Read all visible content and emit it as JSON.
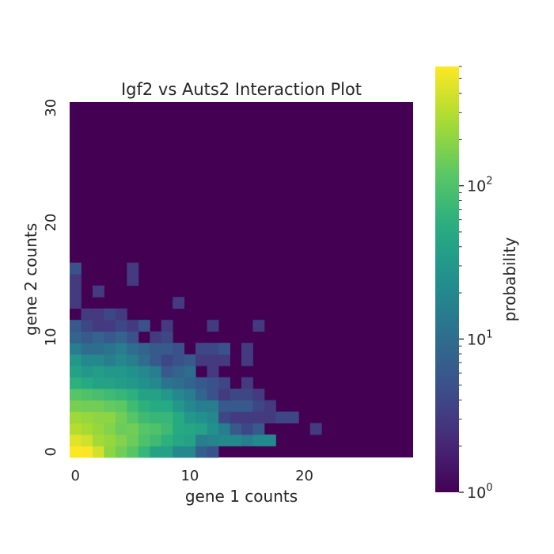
{
  "chart_data": {
    "type": "heatmap",
    "title": "Igf2 vs Auts2 Interaction Plot",
    "xlabel": "gene 1 counts",
    "ylabel": "gene 2 counts",
    "x_ticks": [
      "0",
      "10",
      "20"
    ],
    "y_ticks": [
      "0",
      "10",
      "20",
      "30"
    ],
    "xlim": [
      0,
      30
    ],
    "ylim": [
      0,
      31
    ],
    "colorbar": {
      "label": "probability",
      "scale": "log",
      "colormap": "viridis",
      "range": [
        1,
        600
      ],
      "tick_labels": [
        {
          "base": "10",
          "exp": "0",
          "value": 1
        },
        {
          "base": "10",
          "exp": "1",
          "value": 10
        },
        {
          "base": "10",
          "exp": "2",
          "value": 100
        }
      ]
    },
    "background_value": 1,
    "cells_note_format": "[x, y, value]",
    "cells": [
      [
        0,
        0,
        600
      ],
      [
        1,
        0,
        580
      ],
      [
        2,
        0,
        400
      ],
      [
        3,
        0,
        200
      ],
      [
        4,
        0,
        150
      ],
      [
        5,
        0,
        110
      ],
      [
        6,
        0,
        70
      ],
      [
        7,
        0,
        40
      ],
      [
        8,
        0,
        40
      ],
      [
        9,
        0,
        20
      ],
      [
        10,
        0,
        20
      ],
      [
        11,
        0,
        7
      ],
      [
        12,
        0,
        5
      ],
      [
        0,
        1,
        460
      ],
      [
        1,
        1,
        380
      ],
      [
        2,
        1,
        250
      ],
      [
        3,
        1,
        220
      ],
      [
        4,
        1,
        180
      ],
      [
        5,
        1,
        140
      ],
      [
        6,
        1,
        100
      ],
      [
        7,
        1,
        80
      ],
      [
        8,
        1,
        60
      ],
      [
        9,
        1,
        45
      ],
      [
        10,
        1,
        40
      ],
      [
        11,
        1,
        15
      ],
      [
        12,
        1,
        18
      ],
      [
        13,
        1,
        20
      ],
      [
        14,
        1,
        20
      ],
      [
        15,
        1,
        15
      ],
      [
        16,
        1,
        20
      ],
      [
        17,
        1,
        20
      ],
      [
        0,
        2,
        300
      ],
      [
        1,
        2,
        260
      ],
      [
        2,
        2,
        220
      ],
      [
        3,
        2,
        180
      ],
      [
        4,
        2,
        140
      ],
      [
        5,
        2,
        150
      ],
      [
        6,
        2,
        110
      ],
      [
        7,
        2,
        100
      ],
      [
        8,
        2,
        80
      ],
      [
        9,
        2,
        50
      ],
      [
        10,
        2,
        45
      ],
      [
        11,
        2,
        40
      ],
      [
        12,
        2,
        25
      ],
      [
        13,
        2,
        15
      ],
      [
        14,
        2,
        6
      ],
      [
        15,
        2,
        4
      ],
      [
        16,
        2,
        6
      ],
      [
        21,
        2,
        3
      ],
      [
        0,
        3,
        240
      ],
      [
        1,
        3,
        220
      ],
      [
        2,
        3,
        200
      ],
      [
        3,
        3,
        200
      ],
      [
        4,
        3,
        150
      ],
      [
        5,
        3,
        110
      ],
      [
        6,
        3,
        80
      ],
      [
        7,
        3,
        70
      ],
      [
        8,
        3,
        70
      ],
      [
        9,
        3,
        50
      ],
      [
        10,
        3,
        30
      ],
      [
        11,
        3,
        25
      ],
      [
        12,
        3,
        20
      ],
      [
        13,
        3,
        4
      ],
      [
        14,
        3,
        3
      ],
      [
        15,
        3,
        3
      ],
      [
        16,
        3,
        3
      ],
      [
        17,
        3,
        3
      ],
      [
        18,
        3,
        4
      ],
      [
        19,
        3,
        4
      ],
      [
        0,
        4,
        160
      ],
      [
        1,
        4,
        150
      ],
      [
        2,
        4,
        150
      ],
      [
        3,
        4,
        130
      ],
      [
        4,
        4,
        120
      ],
      [
        5,
        4,
        80
      ],
      [
        6,
        4,
        60
      ],
      [
        7,
        4,
        50
      ],
      [
        8,
        4,
        50
      ],
      [
        9,
        4,
        30
      ],
      [
        10,
        4,
        20
      ],
      [
        11,
        4,
        15
      ],
      [
        12,
        4,
        15
      ],
      [
        13,
        4,
        6
      ],
      [
        14,
        4,
        6
      ],
      [
        15,
        4,
        6
      ],
      [
        16,
        4,
        4
      ],
      [
        17,
        4,
        3
      ],
      [
        0,
        5,
        110
      ],
      [
        1,
        5,
        100
      ],
      [
        2,
        5,
        90
      ],
      [
        3,
        5,
        80
      ],
      [
        4,
        5,
        70
      ],
      [
        5,
        5,
        60
      ],
      [
        6,
        5,
        40
      ],
      [
        7,
        5,
        40
      ],
      [
        8,
        5,
        30
      ],
      [
        9,
        5,
        20
      ],
      [
        10,
        5,
        15
      ],
      [
        11,
        5,
        8
      ],
      [
        12,
        5,
        5
      ],
      [
        13,
        5,
        3
      ],
      [
        14,
        5,
        4
      ],
      [
        15,
        5,
        4
      ],
      [
        16,
        5,
        3
      ],
      [
        0,
        6,
        60
      ],
      [
        1,
        6,
        50
      ],
      [
        2,
        6,
        40
      ],
      [
        3,
        6,
        40
      ],
      [
        4,
        6,
        35
      ],
      [
        5,
        6,
        30
      ],
      [
        6,
        6,
        25
      ],
      [
        7,
        6,
        20
      ],
      [
        8,
        6,
        12
      ],
      [
        9,
        6,
        10
      ],
      [
        10,
        6,
        8
      ],
      [
        11,
        6,
        6
      ],
      [
        12,
        6,
        5
      ],
      [
        13,
        6,
        4
      ],
      [
        15,
        6,
        3
      ],
      [
        0,
        7,
        40
      ],
      [
        1,
        7,
        30
      ],
      [
        2,
        7,
        35
      ],
      [
        3,
        7,
        30
      ],
      [
        4,
        7,
        30
      ],
      [
        5,
        7,
        25
      ],
      [
        6,
        7,
        20
      ],
      [
        7,
        7,
        15
      ],
      [
        8,
        7,
        6
      ],
      [
        9,
        7,
        8
      ],
      [
        10,
        7,
        10
      ],
      [
        12,
        7,
        3
      ],
      [
        0,
        8,
        30
      ],
      [
        1,
        8,
        20
      ],
      [
        2,
        8,
        20
      ],
      [
        3,
        8,
        15
      ],
      [
        4,
        8,
        20
      ],
      [
        5,
        8,
        15
      ],
      [
        6,
        8,
        10
      ],
      [
        7,
        8,
        6
      ],
      [
        8,
        8,
        4
      ],
      [
        9,
        8,
        5
      ],
      [
        10,
        8,
        6
      ],
      [
        11,
        8,
        3
      ],
      [
        12,
        8,
        3
      ],
      [
        13,
        8,
        3
      ],
      [
        15,
        8,
        3
      ],
      [
        0,
        9,
        15
      ],
      [
        1,
        9,
        10
      ],
      [
        2,
        9,
        10
      ],
      [
        3,
        9,
        12
      ],
      [
        4,
        9,
        15
      ],
      [
        5,
        9,
        10
      ],
      [
        6,
        9,
        8
      ],
      [
        7,
        9,
        6
      ],
      [
        8,
        9,
        6
      ],
      [
        9,
        9,
        5
      ],
      [
        11,
        9,
        4
      ],
      [
        12,
        9,
        4
      ],
      [
        13,
        9,
        5
      ],
      [
        15,
        9,
        3
      ],
      [
        0,
        10,
        8
      ],
      [
        1,
        10,
        6
      ],
      [
        2,
        10,
        8
      ],
      [
        3,
        10,
        6
      ],
      [
        4,
        10,
        8
      ],
      [
        5,
        10,
        5
      ],
      [
        7,
        10,
        3
      ],
      [
        8,
        10,
        4
      ],
      [
        0,
        11,
        6
      ],
      [
        1,
        11,
        4
      ],
      [
        2,
        11,
        3
      ],
      [
        3,
        11,
        3
      ],
      [
        4,
        11,
        4
      ],
      [
        5,
        11,
        3
      ],
      [
        6,
        11,
        5
      ],
      [
        8,
        11,
        3
      ],
      [
        12,
        11,
        3
      ],
      [
        16,
        11,
        3
      ],
      [
        1,
        12,
        3
      ],
      [
        2,
        12,
        3
      ],
      [
        3,
        12,
        4
      ],
      [
        4,
        12,
        3
      ],
      [
        0,
        13,
        3
      ],
      [
        9,
        13,
        3
      ],
      [
        0,
        14,
        3
      ],
      [
        2,
        14,
        3
      ],
      [
        0,
        15,
        3
      ],
      [
        5,
        15,
        3
      ],
      [
        0,
        16,
        5
      ],
      [
        5,
        16,
        3
      ]
    ]
  }
}
